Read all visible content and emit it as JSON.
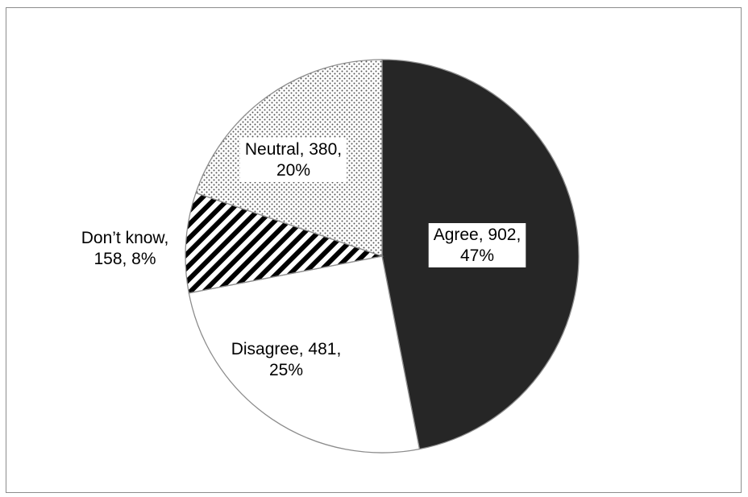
{
  "chart_data": {
    "type": "pie",
    "title": "",
    "slices": [
      {
        "label": "Agree",
        "value": 902,
        "percent": "47%",
        "line1": "Agree, 902,",
        "line2": "47%",
        "pattern": "solid-dark"
      },
      {
        "label": "Disagree",
        "value": 481,
        "percent": "25%",
        "line1": "Disagree, 481,",
        "line2": "25%",
        "pattern": "white"
      },
      {
        "label": "Don’t know",
        "value": 158,
        "percent": "8%",
        "line1": "Don’t know,",
        "line2": "158, 8%",
        "pattern": "diagonal-stripes"
      },
      {
        "label": "Neutral",
        "value": 380,
        "percent": "20%",
        "line1": "Neutral, 380,",
        "line2": "20%",
        "pattern": "dots"
      }
    ],
    "colors": {
      "agree": "#262626",
      "outline": "#8c8c8c",
      "stripes": "#000000",
      "dots": "#555555"
    },
    "start_angle": "12 o'clock",
    "direction": "clockwise",
    "legend": "none"
  }
}
